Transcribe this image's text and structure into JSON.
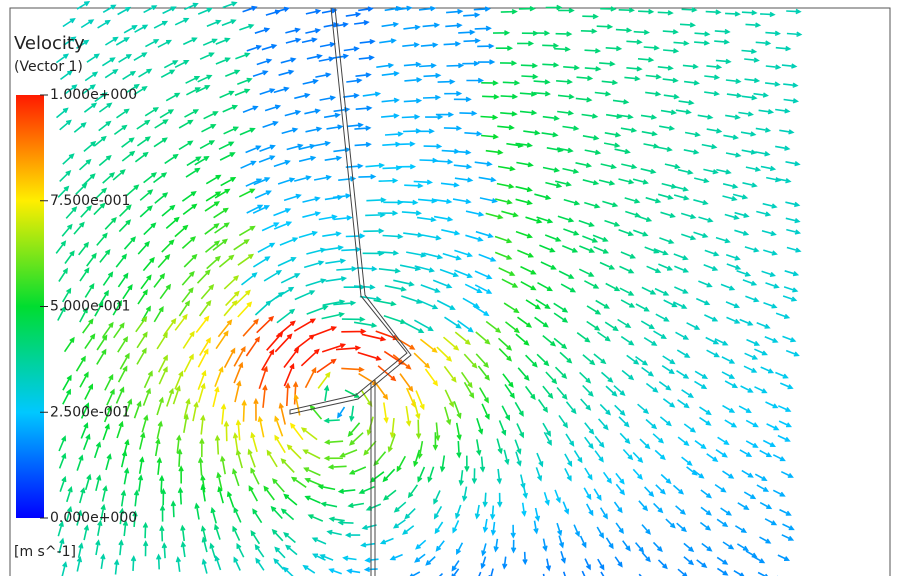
{
  "legend": {
    "title": "Velocity",
    "subtitle": "(Vector 1)",
    "ticks": [
      {
        "value": 1,
        "label": "1.000e+000"
      },
      {
        "value": 0.75,
        "label": "7.500e-001"
      },
      {
        "value": 0.5,
        "label": "5.000e-001"
      },
      {
        "value": 0.25,
        "label": "2.500e-001"
      },
      {
        "value": 0,
        "label": "0.000e+000"
      }
    ],
    "units": "[m s^-1]"
  }
}
